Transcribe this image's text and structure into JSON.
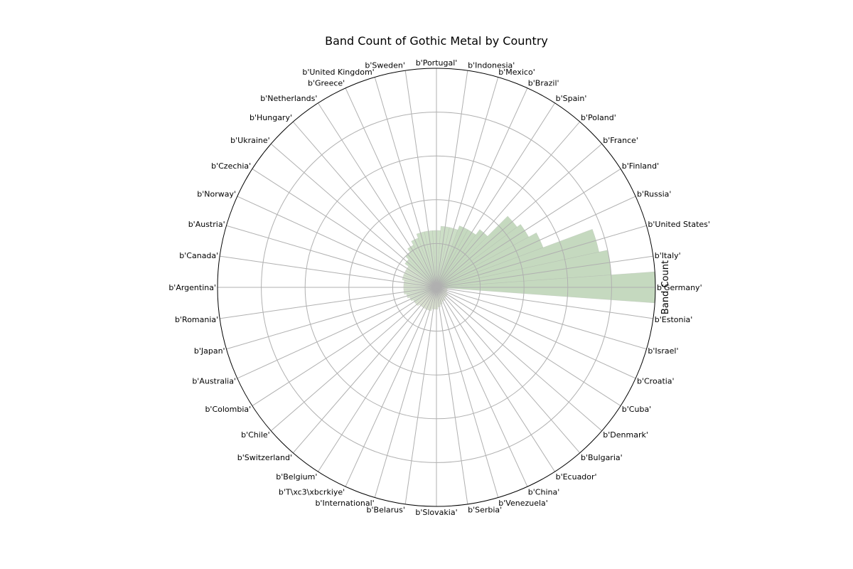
{
  "chart_data": {
    "type": "polar-bar",
    "title": "Band Count of Gothic Metal by Country",
    "ylabel": "Band Count",
    "categories": [
      "b'Germany'",
      "b'Italy'",
      "b'United States'",
      "b'Russia'",
      "b'Finland'",
      "b'France'",
      "b'Poland'",
      "b'Spain'",
      "b'Brazil'",
      "b'Mexico'",
      "b'Indonesia'",
      "b'Portugal'",
      "b'Sweden'",
      "b'United Kingdom'",
      "b'Greece'",
      "b'Netherlands'",
      "b'Hungary'",
      "b'Ukraine'",
      "b'Czechia'",
      "b'Norway'",
      "b'Austria'",
      "b'Canada'",
      "b'Argentina'",
      "b'Romania'",
      "b'Japan'",
      "b'Australia'",
      "b'Colombia'",
      "b'Chile'",
      "b'Switzerland'",
      "b'Belgium'",
      "b'T\\xc3\\xbcrkiye'",
      "b'International'",
      "b'Belarus'",
      "b'Slovakia'",
      "b'Serbia'",
      "b'Venezuela'",
      "b'China'",
      "b'Ecuador'",
      "b'Bulgaria'",
      "b'Denmark'",
      "b'Cuba'",
      "b'Croatia'",
      "b'Israel'",
      "b'Estonia'"
    ],
    "values": [
      500,
      400,
      380,
      260,
      240,
      230,
      165,
      150,
      150,
      140,
      140,
      130,
      130,
      130,
      120,
      110,
      100,
      90,
      80,
      80,
      80,
      75,
      75,
      75,
      70,
      65,
      60,
      60,
      55,
      55,
      55,
      55,
      50,
      50,
      45,
      40,
      35,
      35,
      30,
      30,
      30,
      25,
      25,
      25
    ],
    "rlim": [
      0,
      500
    ],
    "radial_ticks": [
      100,
      200,
      300,
      400,
      500
    ],
    "grid": true,
    "colors": {
      "palette": [
        "#95ba8b",
        "#a3c298",
        "#b3cba5",
        "#c4d4b1",
        "#d6e0c1"
      ],
      "grid": "#b0b0b0",
      "frame": "#000000",
      "edge": "#a8a8a8"
    }
  }
}
